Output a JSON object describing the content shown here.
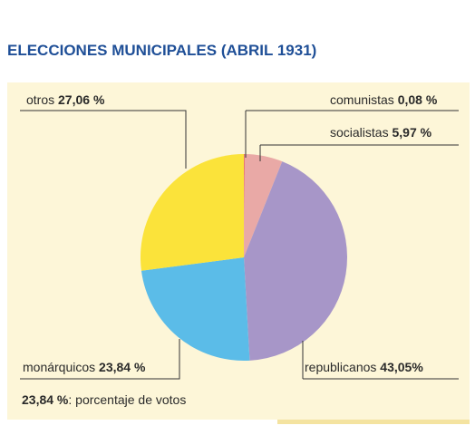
{
  "chart_data": {
    "type": "pie",
    "title": "ELECCIONES MUNICIPALES (ABRIL 1931)",
    "slices": [
      {
        "name": "comunistas",
        "value": 0.08,
        "value_label": "0,08 %",
        "color": "#e8423c"
      },
      {
        "name": "socialistas",
        "value": 5.97,
        "value_label": "5,97 %",
        "color": "#e9a9a6"
      },
      {
        "name": "republicanos",
        "value": 43.05,
        "value_label": "43,05%",
        "color": "#a796c8"
      },
      {
        "name": "monárquicos",
        "value": 23.84,
        "value_label": "23,84 %",
        "color": "#5bbce8"
      },
      {
        "name": "otros",
        "value": 27.06,
        "value_label": "27,06 %",
        "color": "#fbe33a"
      }
    ],
    "legend_note": {
      "value": "23,84 %",
      "text": ": porcentaje de votos"
    }
  }
}
